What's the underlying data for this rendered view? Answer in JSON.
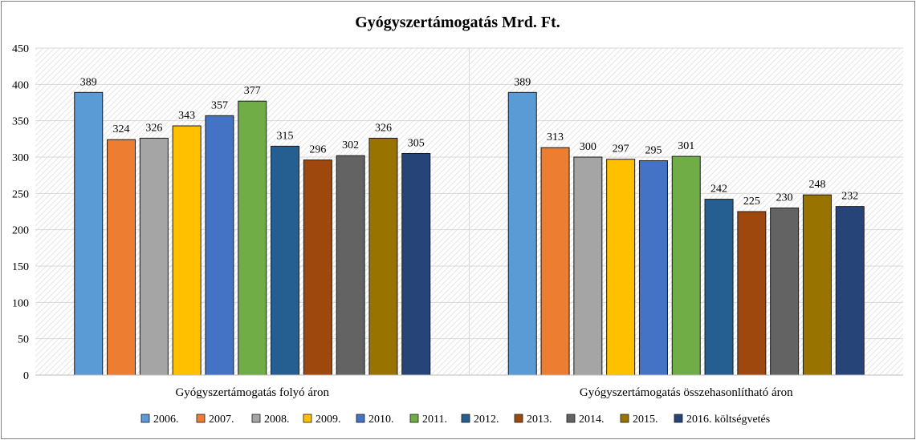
{
  "chart_data": {
    "type": "bar",
    "title": "Gyógyszertámogatás Mrd. Ft.",
    "xlabel": "",
    "ylabel": "",
    "categories": [
      "Gyógyszertámogatás folyó áron",
      "Gyógyszertámogatás összehasonlítható áron"
    ],
    "ylim": [
      0,
      450
    ],
    "yticks": [
      0,
      50,
      100,
      150,
      200,
      250,
      300,
      350,
      400,
      450
    ],
    "grid": true,
    "legend_position": "bottom",
    "series": [
      {
        "name": "2006.",
        "color": "#5b9bd5",
        "values": [
          389,
          389
        ]
      },
      {
        "name": "2007.",
        "color": "#ed7d31",
        "values": [
          324,
          313
        ]
      },
      {
        "name": "2008.",
        "color": "#a5a5a5",
        "values": [
          326,
          300
        ]
      },
      {
        "name": "2009.",
        "color": "#ffc000",
        "values": [
          343,
          297
        ]
      },
      {
        "name": "2010.",
        "color": "#4472c4",
        "values": [
          357,
          295
        ]
      },
      {
        "name": "2011.",
        "color": "#70ad47",
        "values": [
          377,
          301
        ]
      },
      {
        "name": "2012.",
        "color": "#255e91",
        "values": [
          315,
          242
        ]
      },
      {
        "name": "2013.",
        "color": "#9e480e",
        "values": [
          296,
          225
        ]
      },
      {
        "name": "2014.",
        "color": "#636363",
        "values": [
          302,
          230
        ]
      },
      {
        "name": "2015.",
        "color": "#997300",
        "values": [
          326,
          248
        ]
      },
      {
        "name": "2016. költségvetés",
        "color": "#264478",
        "values": [
          305,
          232
        ]
      }
    ]
  }
}
